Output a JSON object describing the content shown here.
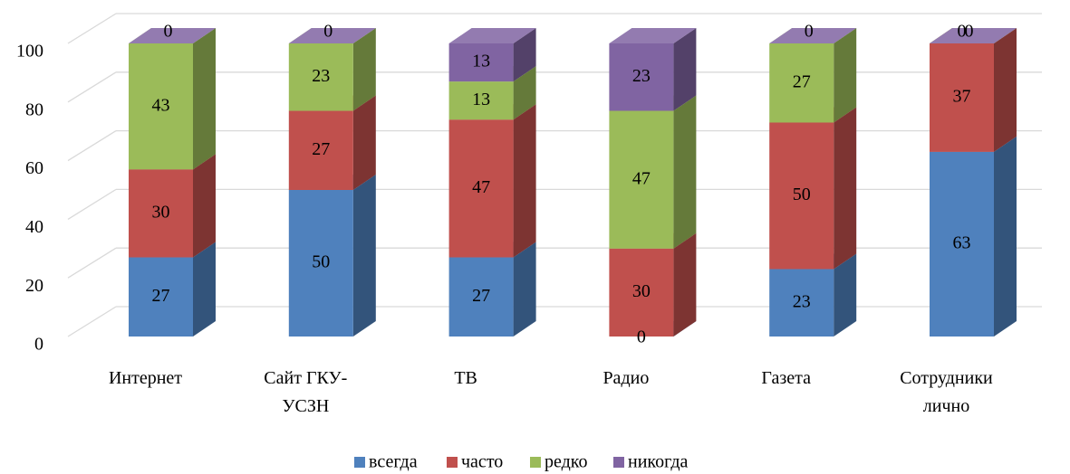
{
  "chart_data": {
    "type": "bar3d_stacked",
    "categories": [
      "Интернет",
      "Сайт ГКУ-УСЗН",
      "ТВ",
      "Радио",
      "Газета",
      "Сотрудники лично"
    ],
    "series": [
      {
        "name": "всегда",
        "color": "#4f81bd",
        "values": [
          27,
          50,
          27,
          0,
          23,
          63
        ]
      },
      {
        "name": "часто",
        "color": "#c0504d",
        "values": [
          30,
          27,
          47,
          30,
          50,
          37
        ]
      },
      {
        "name": "редко",
        "color": "#9bbb59",
        "values": [
          43,
          23,
          13,
          47,
          27,
          0
        ]
      },
      {
        "name": "никогда",
        "color": "#8064a2",
        "values": [
          0,
          0,
          13,
          23,
          0,
          0
        ]
      }
    ],
    "ylim": [
      0,
      100
    ],
    "yticks": [
      0,
      20,
      40,
      60,
      80,
      100
    ],
    "grid": true,
    "legend": "bottom"
  }
}
